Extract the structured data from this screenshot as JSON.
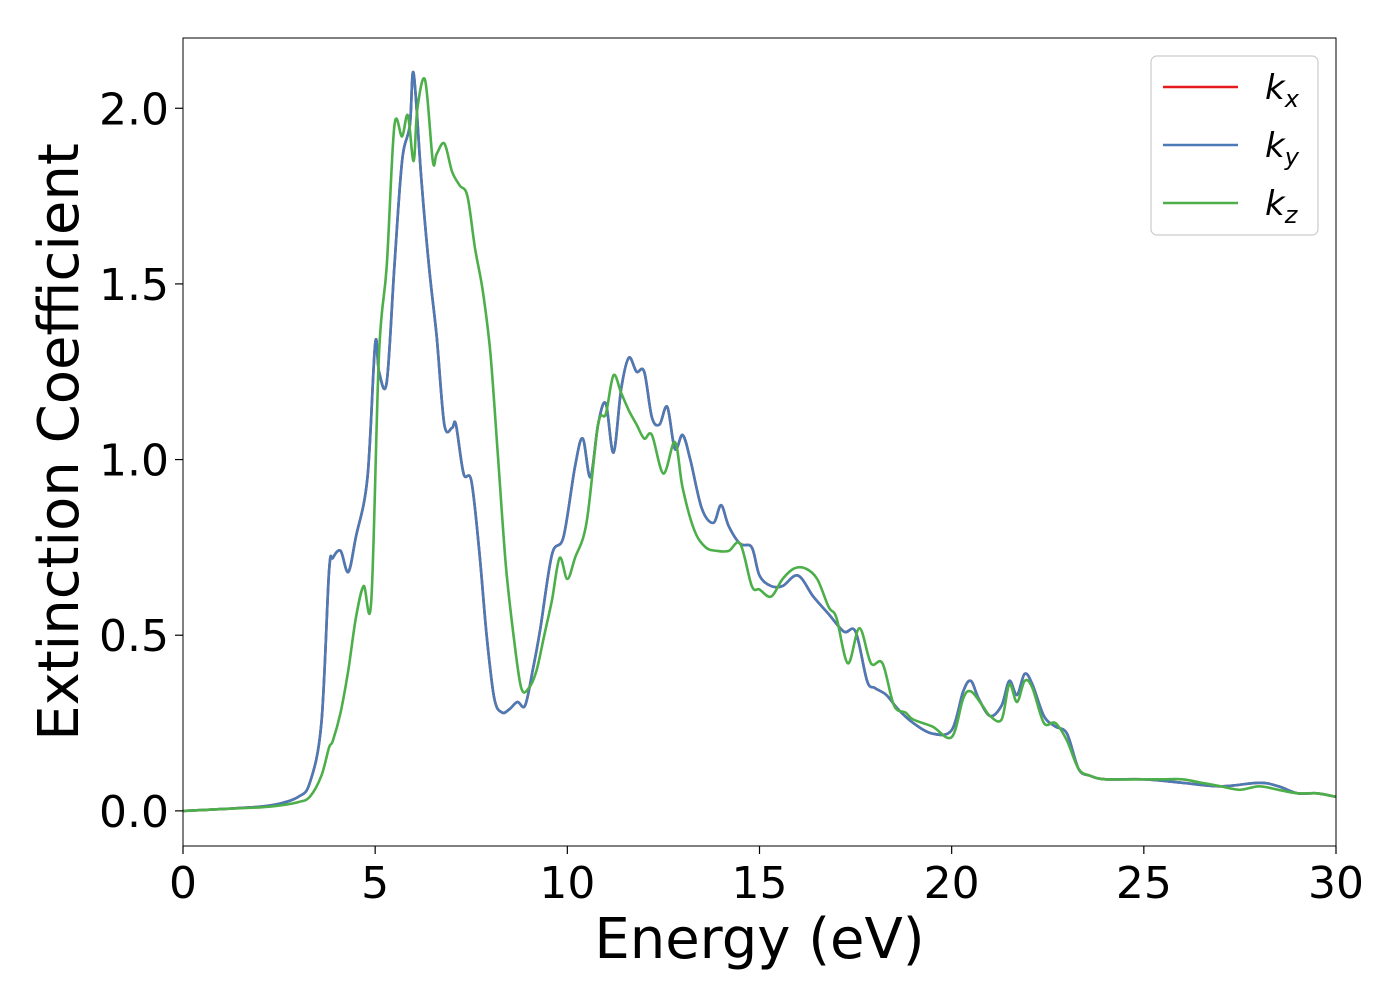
{
  "chart_data": {
    "type": "line",
    "xlabel": "Energy (eV)",
    "ylabel": "Extinction Coefficient",
    "xlim": [
      0,
      30
    ],
    "ylim": [
      -0.1,
      2.2
    ],
    "xticks": [
      "0",
      "5",
      "10",
      "15",
      "20",
      "25",
      "30"
    ],
    "yticks": [
      "0.0",
      "0.5",
      "1.0",
      "1.5",
      "2.0"
    ],
    "grid": false,
    "legend_position": "top-right",
    "series": [
      {
        "name": "k_x",
        "label_base": "k",
        "label_sub": "x",
        "color": "#e41a1c",
        "x": [
          0,
          1,
          2,
          2.5,
          3,
          3.3,
          3.6,
          3.8,
          3.9,
          4.1,
          4.3,
          4.5,
          4.8,
          5.0,
          5.1,
          5.3,
          5.5,
          5.7,
          5.9,
          6.0,
          6.2,
          6.4,
          6.6,
          6.8,
          7.0,
          7.1,
          7.3,
          7.5,
          7.7,
          7.9,
          8.1,
          8.3,
          8.5,
          8.7,
          8.9,
          9.1,
          9.3,
          9.6,
          9.9,
          10.2,
          10.4,
          10.6,
          10.8,
          11.0,
          11.2,
          11.4,
          11.6,
          11.8,
          12.0,
          12.2,
          12.4,
          12.6,
          12.8,
          13.0,
          13.2,
          13.5,
          13.8,
          14.0,
          14.2,
          14.5,
          14.8,
          15.0,
          15.3,
          15.6,
          16.0,
          16.4,
          16.8,
          17.2,
          17.5,
          17.8,
          18.0,
          18.3,
          18.6,
          19.0,
          19.5,
          20.0,
          20.3,
          20.5,
          20.7,
          21.0,
          21.3,
          21.5,
          21.7,
          21.9,
          22.1,
          22.4,
          22.7,
          23.0,
          23.3,
          23.6,
          24.0,
          25.0,
          26.0,
          27.0,
          28.0,
          28.5,
          29.0,
          29.5,
          30.0
        ],
        "y": [
          0,
          0.005,
          0.012,
          0.02,
          0.04,
          0.08,
          0.25,
          0.68,
          0.72,
          0.74,
          0.68,
          0.78,
          0.95,
          1.33,
          1.25,
          1.22,
          1.55,
          1.85,
          1.95,
          2.1,
          1.8,
          1.55,
          1.35,
          1.1,
          1.09,
          1.1,
          0.96,
          0.94,
          0.75,
          0.5,
          0.32,
          0.28,
          0.29,
          0.31,
          0.3,
          0.4,
          0.52,
          0.73,
          0.78,
          0.98,
          1.06,
          0.95,
          1.1,
          1.16,
          1.02,
          1.2,
          1.29,
          1.25,
          1.25,
          1.12,
          1.1,
          1.15,
          1.03,
          1.07,
          1.0,
          0.86,
          0.82,
          0.87,
          0.81,
          0.76,
          0.75,
          0.67,
          0.64,
          0.64,
          0.67,
          0.61,
          0.56,
          0.51,
          0.51,
          0.37,
          0.35,
          0.33,
          0.29,
          0.25,
          0.22,
          0.23,
          0.34,
          0.37,
          0.32,
          0.27,
          0.3,
          0.37,
          0.33,
          0.39,
          0.36,
          0.27,
          0.24,
          0.22,
          0.12,
          0.1,
          0.09,
          0.09,
          0.08,
          0.07,
          0.08,
          0.07,
          0.05,
          0.05,
          0.04
        ]
      },
      {
        "name": "k_y",
        "label_base": "k",
        "label_sub": "y",
        "color": "#4a7bb7",
        "x": [
          0,
          1,
          2,
          2.5,
          3,
          3.3,
          3.6,
          3.8,
          3.9,
          4.1,
          4.3,
          4.5,
          4.8,
          5.0,
          5.1,
          5.3,
          5.5,
          5.7,
          5.9,
          6.0,
          6.2,
          6.4,
          6.6,
          6.8,
          7.0,
          7.1,
          7.3,
          7.5,
          7.7,
          7.9,
          8.1,
          8.3,
          8.5,
          8.7,
          8.9,
          9.1,
          9.3,
          9.6,
          9.9,
          10.2,
          10.4,
          10.6,
          10.8,
          11.0,
          11.2,
          11.4,
          11.6,
          11.8,
          12.0,
          12.2,
          12.4,
          12.6,
          12.8,
          13.0,
          13.2,
          13.5,
          13.8,
          14.0,
          14.2,
          14.5,
          14.8,
          15.0,
          15.3,
          15.6,
          16.0,
          16.4,
          16.8,
          17.2,
          17.5,
          17.8,
          18.0,
          18.3,
          18.6,
          19.0,
          19.5,
          20.0,
          20.3,
          20.5,
          20.7,
          21.0,
          21.3,
          21.5,
          21.7,
          21.9,
          22.1,
          22.4,
          22.7,
          23.0,
          23.3,
          23.6,
          24.0,
          25.0,
          26.0,
          27.0,
          28.0,
          28.5,
          29.0,
          29.5,
          30.0
        ],
        "y": [
          0,
          0.005,
          0.012,
          0.02,
          0.04,
          0.08,
          0.25,
          0.68,
          0.72,
          0.74,
          0.68,
          0.78,
          0.95,
          1.33,
          1.25,
          1.22,
          1.55,
          1.85,
          1.95,
          2.1,
          1.8,
          1.55,
          1.35,
          1.1,
          1.09,
          1.1,
          0.96,
          0.94,
          0.75,
          0.5,
          0.32,
          0.28,
          0.29,
          0.31,
          0.3,
          0.4,
          0.52,
          0.73,
          0.78,
          0.98,
          1.06,
          0.95,
          1.1,
          1.16,
          1.02,
          1.2,
          1.29,
          1.25,
          1.25,
          1.12,
          1.1,
          1.15,
          1.03,
          1.07,
          1.0,
          0.86,
          0.82,
          0.87,
          0.81,
          0.76,
          0.75,
          0.67,
          0.64,
          0.64,
          0.67,
          0.61,
          0.56,
          0.51,
          0.51,
          0.37,
          0.35,
          0.33,
          0.29,
          0.25,
          0.22,
          0.23,
          0.34,
          0.37,
          0.32,
          0.27,
          0.3,
          0.37,
          0.33,
          0.39,
          0.36,
          0.27,
          0.24,
          0.22,
          0.12,
          0.1,
          0.09,
          0.09,
          0.08,
          0.07,
          0.08,
          0.07,
          0.05,
          0.05,
          0.04
        ]
      },
      {
        "name": "k_z",
        "label_base": "k",
        "label_sub": "z",
        "color": "#4daf4a",
        "x": [
          0,
          1,
          2,
          2.5,
          3,
          3.3,
          3.6,
          3.8,
          3.9,
          4.1,
          4.3,
          4.5,
          4.7,
          4.9,
          5.1,
          5.3,
          5.5,
          5.7,
          5.85,
          6.0,
          6.1,
          6.3,
          6.5,
          6.6,
          6.8,
          7.0,
          7.2,
          7.4,
          7.6,
          7.8,
          8.0,
          8.2,
          8.4,
          8.6,
          8.8,
          9.0,
          9.2,
          9.4,
          9.6,
          9.8,
          10.0,
          10.2,
          10.5,
          10.8,
          11.0,
          11.2,
          11.4,
          11.6,
          11.8,
          12.0,
          12.2,
          12.5,
          12.8,
          13.0,
          13.3,
          13.6,
          13.9,
          14.2,
          14.5,
          14.8,
          15.0,
          15.3,
          15.6,
          15.9,
          16.2,
          16.5,
          16.8,
          17.0,
          17.3,
          17.6,
          17.9,
          18.2,
          18.5,
          18.8,
          19.0,
          19.5,
          20.0,
          20.3,
          20.5,
          20.8,
          21.0,
          21.3,
          21.5,
          21.7,
          21.9,
          22.1,
          22.4,
          22.7,
          23.0,
          23.3,
          23.6,
          24.0,
          25.0,
          25.5,
          26.0,
          26.5,
          27.0,
          27.5,
          28.0,
          28.5,
          29.0,
          29.5,
          30.0
        ],
        "y": [
          0,
          0.005,
          0.01,
          0.015,
          0.025,
          0.04,
          0.1,
          0.18,
          0.2,
          0.28,
          0.4,
          0.55,
          0.64,
          0.6,
          1.3,
          1.55,
          1.95,
          1.92,
          1.98,
          1.85,
          2.0,
          2.08,
          1.85,
          1.87,
          1.9,
          1.82,
          1.78,
          1.75,
          1.6,
          1.48,
          1.3,
          1.0,
          0.7,
          0.5,
          0.35,
          0.35,
          0.4,
          0.5,
          0.6,
          0.72,
          0.66,
          0.72,
          0.82,
          1.1,
          1.13,
          1.24,
          1.19,
          1.14,
          1.1,
          1.06,
          1.07,
          0.96,
          1.05,
          0.92,
          0.8,
          0.75,
          0.74,
          0.74,
          0.76,
          0.64,
          0.63,
          0.61,
          0.66,
          0.69,
          0.69,
          0.66,
          0.58,
          0.55,
          0.42,
          0.52,
          0.42,
          0.42,
          0.3,
          0.28,
          0.26,
          0.24,
          0.21,
          0.32,
          0.34,
          0.3,
          0.27,
          0.26,
          0.36,
          0.31,
          0.37,
          0.35,
          0.25,
          0.25,
          0.2,
          0.12,
          0.1,
          0.09,
          0.09,
          0.09,
          0.09,
          0.08,
          0.07,
          0.06,
          0.07,
          0.06,
          0.05,
          0.05,
          0.04
        ]
      }
    ]
  }
}
